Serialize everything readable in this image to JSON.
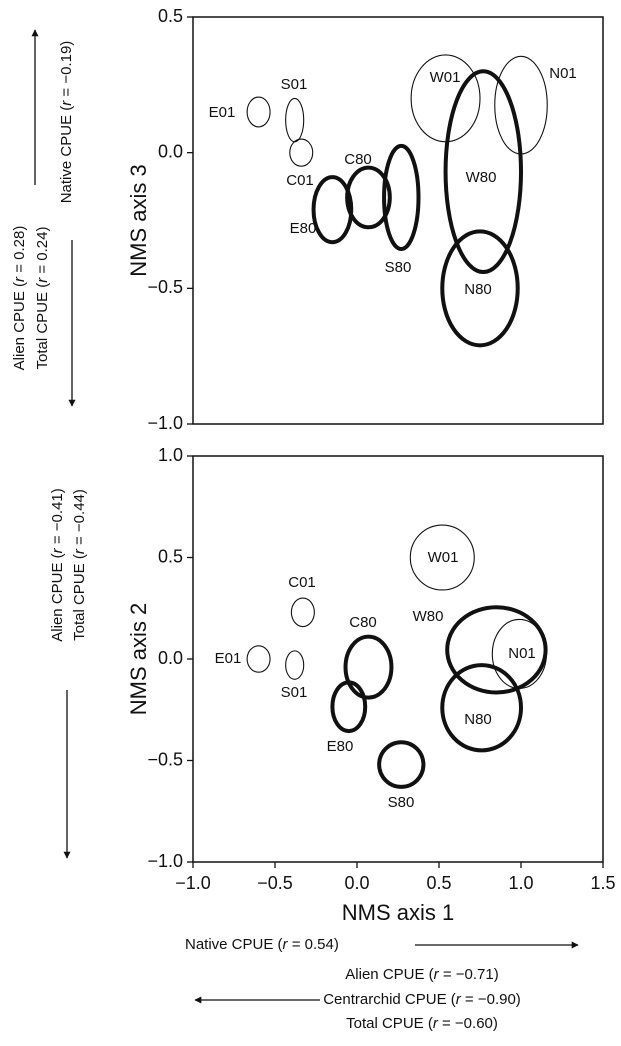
{
  "chart_data": [
    {
      "type": "ellipse",
      "ylabel": "NMS axis 3",
      "xlim": [
        -1,
        1.5
      ],
      "ylim": [
        -1,
        0.5
      ],
      "yticks": [
        {
          "value": -1,
          "label": "−1.0"
        },
        {
          "value": -0.5,
          "label": "−0.5"
        },
        {
          "value": 0,
          "label": "0.0"
        },
        0.5
      ],
      "labels": [
        "E01",
        "S01",
        "C01",
        "C80",
        "E80",
        "S80",
        "W01",
        "N01",
        "W80",
        "N80"
      ],
      "styles": [
        "thin",
        "thin",
        "thin",
        "thick",
        "thick",
        "thick",
        "thin",
        "thin",
        "thick",
        "thick"
      ],
      "x": [
        -0.6,
        -0.38,
        -0.34,
        0.07,
        -0.15,
        0.27,
        0.54,
        1.0,
        0.77,
        0.75
      ],
      "y": [
        0.15,
        0.12,
        0.0,
        -0.165,
        -0.21,
        -0.165,
        0.2,
        0.175,
        -0.07,
        -0.5
      ],
      "x_radius": [
        0.07,
        0.055,
        0.07,
        0.13,
        0.115,
        0.105,
        0.21,
        0.16,
        0.23,
        0.23
      ],
      "y_radius": [
        0.055,
        0.08,
        0.05,
        0.11,
        0.12,
        0.19,
        0.16,
        0.18,
        0.37,
        0.21
      ]
    },
    {
      "type": "ellipse",
      "ylabel": "NMS axis 2",
      "xlabel": "NMS axis 1",
      "xlim": [
        -1,
        1.5
      ],
      "ylim": [
        -1,
        1
      ],
      "xticks": [
        {
          "value": -1,
          "label": "−1.0"
        },
        {
          "value": -0.5,
          "label": "−0.5"
        },
        {
          "value": 0,
          "label": "0.0"
        },
        0.5,
        {
          "value": 1,
          "label": "1.0"
        },
        1.5
      ],
      "yticks": [
        {
          "value": -1,
          "label": "−1.0"
        },
        {
          "value": -0.5,
          "label": "−0.5"
        },
        {
          "value": 0,
          "label": "0.0"
        },
        0.5,
        {
          "value": 1,
          "label": "1.0"
        }
      ],
      "labels": [
        "E01",
        "S01",
        "C01",
        "C80",
        "E80",
        "S80",
        "W01",
        "N01",
        "W80",
        "N80"
      ],
      "styles": [
        "thin",
        "thin",
        "thin",
        "thick",
        "thick",
        "thick",
        "thin",
        "thin",
        "thick",
        "thick"
      ],
      "x": [
        -0.6,
        -0.38,
        -0.33,
        0.07,
        -0.05,
        0.27,
        0.52,
        0.99,
        0.85,
        0.76
      ],
      "y": [
        0.0,
        -0.03,
        0.23,
        -0.04,
        -0.235,
        -0.52,
        0.5,
        0.025,
        0.045,
        -0.24
      ],
      "x_radius": [
        0.07,
        0.055,
        0.07,
        0.14,
        0.1,
        0.135,
        0.195,
        0.165,
        0.3,
        0.24
      ],
      "y_radius": [
        0.065,
        0.07,
        0.07,
        0.15,
        0.12,
        0.11,
        0.16,
        0.17,
        0.21,
        0.21
      ]
    }
  ],
  "annotations": [
    "Native CPUE (r = −0.19)",
    "Alien CPUE (r = 0.28)",
    "Total CPUE (r = 0.24)",
    "Alien CPUE (r = −0.41)",
    "Total CPUE (r = −0.44)",
    "Native CPUE (r = 0.54)",
    "Alien CPUE (r = −0.71)",
    "Centrarchid CPUE (r = −0.90)",
    "Total CPUE (r = −0.60)"
  ]
}
